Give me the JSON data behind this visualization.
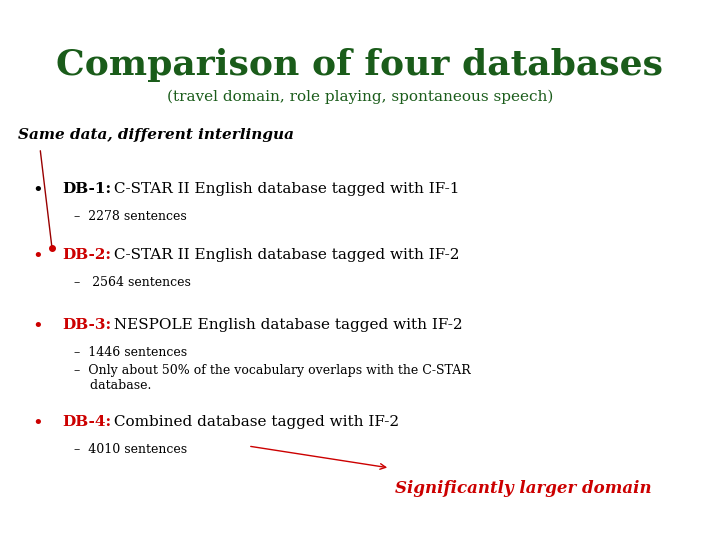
{
  "title": "Comparison of four databases",
  "subtitle": "(travel domain, role playing, spontaneous speech)",
  "tagline": "Same data, different interlingua",
  "title_color": "#1a5c1a",
  "subtitle_color": "#1a5c1a",
  "tagline_color": "#000000",
  "red_color": "#cc0000",
  "black_color": "#000000",
  "bg_color": "#ffffff",
  "bullets": [
    {
      "label": "DB-1:",
      "label_color": "#000000",
      "text": " C-STAR II English database tagged with IF-1",
      "sub": [
        "–  2278 sentences"
      ],
      "bullet_color": "#000000"
    },
    {
      "label": "DB-2:",
      "label_color": "#cc0000",
      "text": " C-STAR II English database tagged with IF-2",
      "sub": [
        "–   2564 sentences"
      ],
      "bullet_color": "#cc0000"
    },
    {
      "label": "DB-3:",
      "label_color": "#cc0000",
      "text": " NESPOLE English database tagged with IF-2",
      "sub": [
        "–  1446 sentences",
        "–  Only about 50% of the vocabulary overlaps with the C-STAR\n    database."
      ],
      "bullet_color": "#cc0000"
    },
    {
      "label": "DB-4:",
      "label_color": "#cc0000",
      "text": " Combined database tagged with IF-2",
      "sub": [
        "–  4010 sentences"
      ],
      "bullet_color": "#cc0000"
    }
  ],
  "annotation": "Significantly larger domain",
  "annotation_color": "#cc0000",
  "title_fontsize": 26,
  "subtitle_fontsize": 11,
  "tagline_fontsize": 11,
  "bullet_fontsize": 11,
  "sub_fontsize": 9
}
